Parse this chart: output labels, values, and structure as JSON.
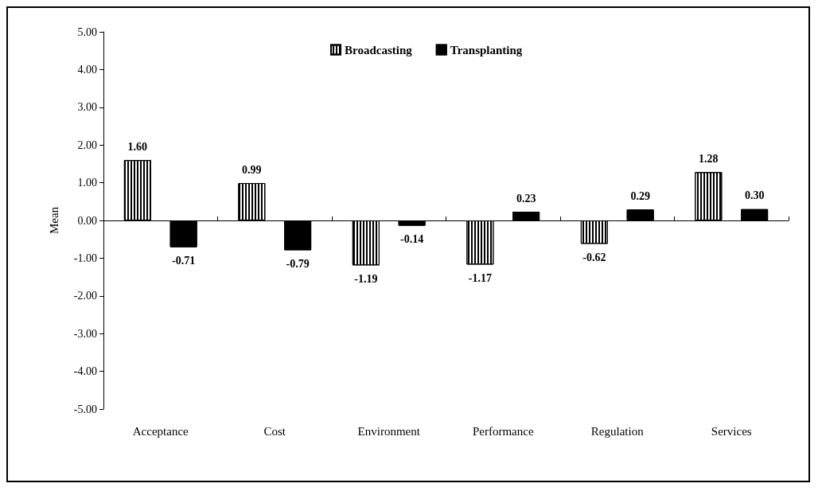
{
  "chart_data": {
    "type": "bar",
    "ylabel": "Mean",
    "categories": [
      "Acceptance",
      "Cost",
      "Environment",
      "Performance",
      "Regulation",
      "Services"
    ],
    "series": [
      {
        "name": "Broadcasting",
        "color": "#ffffff",
        "values": [
          1.6,
          0.99,
          -1.19,
          -1.17,
          -0.62,
          1.28
        ],
        "value_labels": [
          "1.60",
          "0.99",
          "-1.19",
          "-1.17",
          "-0.62",
          "1.28"
        ]
      },
      {
        "name": "Transplanting",
        "color": "#000000",
        "values": [
          -0.71,
          -0.79,
          -0.14,
          0.23,
          0.29,
          0.3
        ],
        "value_labels": [
          "-0.71",
          "-0.79",
          "-0.14",
          "0.23",
          "0.29",
          "0.30"
        ]
      }
    ],
    "ylim": [
      -5,
      5
    ],
    "yticks": [
      {
        "value": -5,
        "label": "-5.00"
      },
      {
        "value": -4,
        "label": "-4.00"
      },
      {
        "value": -3,
        "label": "-3.00"
      },
      {
        "value": -2,
        "label": "-2.00"
      },
      {
        "value": -1,
        "label": "-1.00"
      },
      {
        "value": 0,
        "label": "0.00"
      },
      {
        "value": 1,
        "label": "1.00"
      },
      {
        "value": 2,
        "label": "2.00"
      },
      {
        "value": 3,
        "label": "3.00"
      },
      {
        "value": 4,
        "label": "4.00"
      },
      {
        "value": 5,
        "label": "5.00"
      }
    ],
    "legend": "top"
  }
}
